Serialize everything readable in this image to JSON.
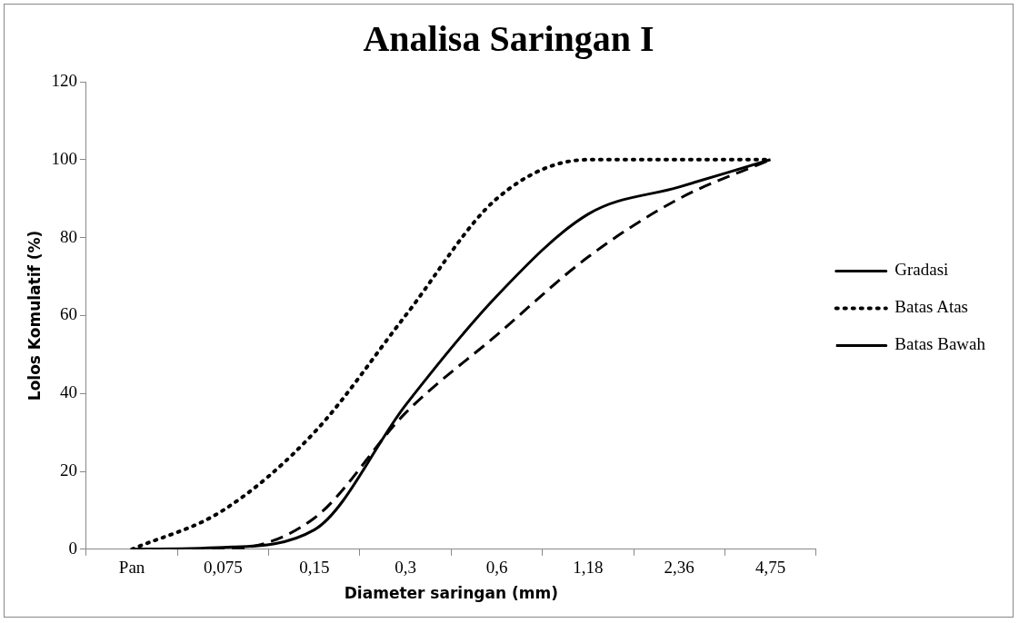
{
  "chart_data": {
    "type": "line",
    "title": "Analisa Saringan I",
    "xlabel": "Diameter saringan (mm)",
    "ylabel": "Lolos Komulatif (%)",
    "categories": [
      "Pan",
      "0,075",
      "0,15",
      "0,3",
      "0,6",
      "1,18",
      "2,36",
      "4,75"
    ],
    "series": [
      {
        "name": "Gradasi",
        "color": "#000000",
        "line_style": "solid",
        "values": [
          0,
          0.5,
          5,
          37,
          65,
          86,
          93,
          100
        ]
      },
      {
        "name": "Batas Atas",
        "color": "#000000",
        "line_style": "dotted",
        "values": [
          0,
          10,
          30,
          60,
          90,
          100,
          100,
          100
        ]
      },
      {
        "name": "Batas Bawah",
        "color": "#000000",
        "line_style": "dashed",
        "values": [
          0,
          0,
          8,
          35,
          55,
          75,
          90,
          100
        ]
      }
    ],
    "ylim": [
      0,
      120
    ],
    "yticks": [
      0,
      20,
      40,
      60,
      80,
      100,
      120
    ],
    "grid": false,
    "legend": "right",
    "marker": "none"
  }
}
